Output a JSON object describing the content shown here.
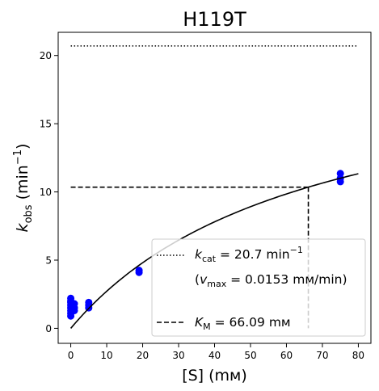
{
  "chart_data": {
    "type": "scatter",
    "title": "H119T",
    "xlabel": "[S] (mм)",
    "ylabel": {
      "main": "k",
      "sub": "obs",
      "unit_open": " (min",
      "sup": "−1",
      "unit_close": ")"
    },
    "xlim": [
      -3.5,
      83.5
    ],
    "ylim": [
      -1.1,
      21.7
    ],
    "xticks": [
      0,
      10,
      20,
      30,
      40,
      50,
      60,
      70,
      80
    ],
    "yticks": [
      0,
      5,
      10,
      15,
      20
    ],
    "grid": false,
    "series": [
      {
        "kind": "points",
        "color": "#0000ff",
        "x": [
          0,
          0,
          0,
          0,
          0,
          0,
          0,
          0,
          1,
          1,
          1,
          5,
          5,
          5,
          19,
          19,
          75,
          75,
          75
        ],
        "y": [
          0.9,
          1.1,
          1.3,
          1.5,
          1.7,
          1.9,
          2.0,
          2.2,
          1.3,
          1.5,
          1.8,
          1.5,
          1.7,
          1.9,
          4.1,
          4.25,
          10.75,
          11.0,
          11.35
        ]
      },
      {
        "kind": "fit-curve",
        "color": "#000000",
        "vmax": 20.7,
        "km": 66.09,
        "x_range": [
          0,
          80
        ]
      },
      {
        "kind": "hline-dotted",
        "color": "#000000",
        "y": 20.7,
        "x_range": [
          0,
          80
        ]
      },
      {
        "kind": "km-guide-dashed",
        "color": "#000000",
        "x": 66.09,
        "y": 10.35,
        "x_start": 0
      }
    ],
    "legend": {
      "placement": "lower-right",
      "entries": [
        {
          "style": "dotted",
          "line1": "kcat = 20.7 min−1",
          "line2": "(vmax = 0.0153 mм/min)"
        },
        {
          "style": "dashed",
          "line1": "KM = 66.09 mм"
        }
      ]
    }
  }
}
